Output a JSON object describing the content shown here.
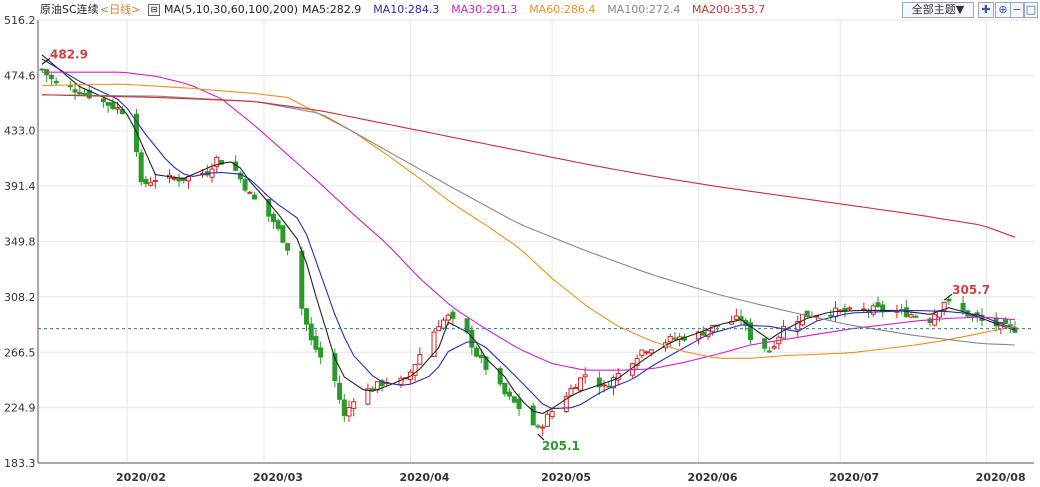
{
  "header": {
    "instrument": "原油SC连续",
    "period": "<日线>",
    "ma_icon": "collapse-box-icon",
    "ma_title": "MA(5,10,30,60,100,200)",
    "ma_values": [
      {
        "label": "MA5:282.9",
        "color": "#222222"
      },
      {
        "label": "MA10:284.3",
        "color": "#2b2bb8"
      },
      {
        "label": "MA30:291.3",
        "color": "#d020d0"
      },
      {
        "label": "MA60:286.4",
        "color": "#f0901c"
      },
      {
        "label": "MA100:272.4",
        "color": "#888888"
      },
      {
        "label": "MA200:353.7",
        "color": "#cc3333"
      }
    ],
    "theme_button": "全部主题▼",
    "controls": [
      {
        "name": "crosshair-icon",
        "glyph": "⊞"
      },
      {
        "name": "zoom-in-icon",
        "glyph": "⊞"
      },
      {
        "name": "minus-icon",
        "glyph": "–"
      },
      {
        "name": "square-icon",
        "glyph": "□"
      }
    ]
  },
  "colors": {
    "up": "#e02020",
    "down": "#2a9a2a",
    "grid": "#e6e6e6",
    "axis": "#555555",
    "last_price_line": "#2a7aa0"
  },
  "chart_data": {
    "type": "candlestick",
    "title": "原油SC连续 <日线>",
    "yticks": [
      516.2,
      474.6,
      433.0,
      391.4,
      349.8,
      308.2,
      266.5,
      224.9,
      183.3
    ],
    "ylim": [
      183.3,
      516.2
    ],
    "x_date_range": [
      "2020-01-14",
      "2020-08-07"
    ],
    "month_labels": [
      {
        "date": "2020-02-01",
        "label": "2020/02"
      },
      {
        "date": "2020-03-01",
        "label": "2020/03"
      },
      {
        "date": "2020-04-01",
        "label": "2020/04"
      },
      {
        "date": "2020-05-01",
        "label": "2020/05"
      },
      {
        "date": "2020-06-01",
        "label": "2020/06"
      },
      {
        "date": "2020-07-01",
        "label": "2020/07"
      },
      {
        "date": "2020-08-01",
        "label": "2020/08"
      }
    ],
    "last_price": 284.3,
    "annotations": [
      {
        "label": "482.9",
        "date": "2020-01-14",
        "value": 482.9,
        "color": "#d04040"
      },
      {
        "label": "305.7",
        "date": "2020-07-23",
        "value": 305.7,
        "color": "#d04040"
      },
      {
        "label": "205.1",
        "date": "2020-04-28",
        "value": 205.1,
        "color": "#2a9a2a"
      }
    ],
    "price_anchors": [
      [
        "2020-01-14",
        479
      ],
      [
        "2020-01-17",
        468
      ],
      [
        "2020-01-22",
        463
      ],
      [
        "2020-01-31",
        448
      ],
      [
        "2020-02-03",
        420
      ],
      [
        "2020-02-04",
        392
      ],
      [
        "2020-02-07",
        397
      ],
      [
        "2020-02-13",
        397
      ],
      [
        "2020-02-18",
        402
      ],
      [
        "2020-02-20",
        412
      ],
      [
        "2020-02-24",
        403
      ],
      [
        "2020-02-27",
        385
      ],
      [
        "2020-03-03",
        365
      ],
      [
        "2020-03-06",
        345
      ],
      [
        "2020-03-09",
        300
      ],
      [
        "2020-03-11",
        275
      ],
      [
        "2020-03-16",
        245
      ],
      [
        "2020-03-18",
        218
      ],
      [
        "2020-03-20",
        232
      ],
      [
        "2020-03-24",
        240
      ],
      [
        "2020-03-27",
        245
      ],
      [
        "2020-03-31",
        245
      ],
      [
        "2020-04-03",
        265
      ],
      [
        "2020-04-07",
        288
      ],
      [
        "2020-04-09",
        293
      ],
      [
        "2020-04-13",
        280
      ],
      [
        "2020-04-15",
        265
      ],
      [
        "2020-04-17",
        255
      ],
      [
        "2020-04-21",
        235
      ],
      [
        "2020-04-24",
        225
      ],
      [
        "2020-04-28",
        208
      ],
      [
        "2020-04-30",
        218
      ],
      [
        "2020-05-06",
        243
      ],
      [
        "2020-05-08",
        250
      ],
      [
        "2020-05-12",
        240
      ],
      [
        "2020-05-15",
        250
      ],
      [
        "2020-05-20",
        268
      ],
      [
        "2020-05-26",
        276
      ],
      [
        "2020-06-01",
        280
      ],
      [
        "2020-06-05",
        287
      ],
      [
        "2020-06-10",
        292
      ],
      [
        "2020-06-12",
        278
      ],
      [
        "2020-06-16",
        268
      ],
      [
        "2020-06-19",
        285
      ],
      [
        "2020-06-23",
        294
      ],
      [
        "2020-06-29",
        297
      ],
      [
        "2020-07-03",
        297
      ],
      [
        "2020-07-09",
        299
      ],
      [
        "2020-07-15",
        296
      ],
      [
        "2020-07-20",
        291
      ],
      [
        "2020-07-23",
        305
      ],
      [
        "2020-07-27",
        297
      ],
      [
        "2020-07-31",
        290
      ],
      [
        "2020-08-04",
        286
      ],
      [
        "2020-08-07",
        284
      ]
    ],
    "series": [
      {
        "name": "MA5",
        "color": "#222222",
        "anchors": [
          [
            "2020-01-14",
            490
          ],
          [
            "2020-01-22",
            466
          ],
          [
            "2020-01-31",
            452
          ],
          [
            "2020-02-03",
            432
          ],
          [
            "2020-02-07",
            400
          ],
          [
            "2020-02-13",
            397
          ],
          [
            "2020-02-20",
            408
          ],
          [
            "2020-02-24",
            410
          ],
          [
            "2020-02-27",
            395
          ],
          [
            "2020-03-03",
            375
          ],
          [
            "2020-03-09",
            347
          ],
          [
            "2020-03-11",
            320
          ],
          [
            "2020-03-16",
            262
          ],
          [
            "2020-03-18",
            248
          ],
          [
            "2020-03-23",
            236
          ],
          [
            "2020-03-27",
            241
          ],
          [
            "2020-04-02",
            250
          ],
          [
            "2020-04-07",
            270
          ],
          [
            "2020-04-09",
            289
          ],
          [
            "2020-04-14",
            280
          ],
          [
            "2020-04-17",
            262
          ],
          [
            "2020-04-21",
            248
          ],
          [
            "2020-04-24",
            232
          ],
          [
            "2020-04-28",
            219
          ],
          [
            "2020-04-30",
            222
          ],
          [
            "2020-05-06",
            236
          ],
          [
            "2020-05-11",
            242
          ],
          [
            "2020-05-15",
            247
          ],
          [
            "2020-05-20",
            260
          ],
          [
            "2020-05-26",
            274
          ],
          [
            "2020-06-01",
            281
          ],
          [
            "2020-06-05",
            287
          ],
          [
            "2020-06-10",
            291
          ],
          [
            "2020-06-16",
            276
          ],
          [
            "2020-06-19",
            283
          ],
          [
            "2020-06-24",
            292
          ],
          [
            "2020-06-29",
            297
          ],
          [
            "2020-07-06",
            298
          ],
          [
            "2020-07-13",
            298
          ],
          [
            "2020-07-20",
            295
          ],
          [
            "2020-07-24",
            300
          ],
          [
            "2020-07-28",
            296
          ],
          [
            "2020-08-03",
            288
          ],
          [
            "2020-08-07",
            283
          ]
        ]
      },
      {
        "name": "MA10",
        "color": "#2b2bb8",
        "anchors": [
          [
            "2020-01-14",
            487
          ],
          [
            "2020-01-22",
            470
          ],
          [
            "2020-01-31",
            455
          ],
          [
            "2020-02-05",
            430
          ],
          [
            "2020-02-10",
            408
          ],
          [
            "2020-02-14",
            398
          ],
          [
            "2020-02-20",
            402
          ],
          [
            "2020-02-26",
            400
          ],
          [
            "2020-03-03",
            380
          ],
          [
            "2020-03-09",
            365
          ],
          [
            "2020-03-12",
            335
          ],
          [
            "2020-03-17",
            285
          ],
          [
            "2020-03-20",
            264
          ],
          [
            "2020-03-25",
            245
          ],
          [
            "2020-03-31",
            241
          ],
          [
            "2020-04-06",
            250
          ],
          [
            "2020-04-09",
            267
          ],
          [
            "2020-04-14",
            276
          ],
          [
            "2020-04-17",
            270
          ],
          [
            "2020-04-22",
            253
          ],
          [
            "2020-04-27",
            235
          ],
          [
            "2020-04-30",
            224
          ],
          [
            "2020-05-06",
            225
          ],
          [
            "2020-05-12",
            238
          ],
          [
            "2020-05-18",
            246
          ],
          [
            "2020-05-22",
            256
          ],
          [
            "2020-05-28",
            268
          ],
          [
            "2020-06-03",
            280
          ],
          [
            "2020-06-10",
            287
          ],
          [
            "2020-06-16",
            286
          ],
          [
            "2020-06-22",
            282
          ],
          [
            "2020-06-26",
            290
          ],
          [
            "2020-07-03",
            296
          ],
          [
            "2020-07-10",
            297
          ],
          [
            "2020-07-17",
            298
          ],
          [
            "2020-07-24",
            297
          ],
          [
            "2020-07-30",
            295
          ],
          [
            "2020-08-07",
            284
          ]
        ]
      },
      {
        "name": "MA30",
        "color": "#d020d0",
        "anchors": [
          [
            "2020-01-14",
            477
          ],
          [
            "2020-01-31",
            477
          ],
          [
            "2020-02-07",
            474
          ],
          [
            "2020-02-14",
            468
          ],
          [
            "2020-02-21",
            457
          ],
          [
            "2020-02-28",
            437
          ],
          [
            "2020-03-06",
            415
          ],
          [
            "2020-03-13",
            393
          ],
          [
            "2020-03-20",
            370
          ],
          [
            "2020-03-27",
            348
          ],
          [
            "2020-04-03",
            322
          ],
          [
            "2020-04-10",
            300
          ],
          [
            "2020-04-17",
            284
          ],
          [
            "2020-04-24",
            269
          ],
          [
            "2020-05-01",
            258
          ],
          [
            "2020-05-08",
            253
          ],
          [
            "2020-05-15",
            253
          ],
          [
            "2020-05-22",
            254
          ],
          [
            "2020-05-29",
            259
          ],
          [
            "2020-06-05",
            265
          ],
          [
            "2020-06-12",
            272
          ],
          [
            "2020-06-19",
            276
          ],
          [
            "2020-06-26",
            280
          ],
          [
            "2020-07-03",
            284
          ],
          [
            "2020-07-10",
            287
          ],
          [
            "2020-07-17",
            290
          ],
          [
            "2020-07-24",
            292
          ],
          [
            "2020-07-31",
            293
          ],
          [
            "2020-08-07",
            291
          ]
        ]
      },
      {
        "name": "MA60",
        "color": "#f0901c",
        "anchors": [
          [
            "2020-01-14",
            467
          ],
          [
            "2020-01-31",
            468
          ],
          [
            "2020-02-14",
            465
          ],
          [
            "2020-02-28",
            461
          ],
          [
            "2020-03-06",
            458
          ],
          [
            "2020-03-13",
            445
          ],
          [
            "2020-03-20",
            432
          ],
          [
            "2020-03-27",
            415
          ],
          [
            "2020-04-03",
            397
          ],
          [
            "2020-04-10",
            378
          ],
          [
            "2020-04-17",
            362
          ],
          [
            "2020-04-24",
            345
          ],
          [
            "2020-05-01",
            322
          ],
          [
            "2020-05-08",
            302
          ],
          [
            "2020-05-15",
            286
          ],
          [
            "2020-05-22",
            275
          ],
          [
            "2020-05-29",
            267
          ],
          [
            "2020-06-05",
            262
          ],
          [
            "2020-06-12",
            262
          ],
          [
            "2020-06-19",
            264
          ],
          [
            "2020-06-26",
            265
          ],
          [
            "2020-07-03",
            266
          ],
          [
            "2020-07-10",
            269
          ],
          [
            "2020-07-17",
            272
          ],
          [
            "2020-07-24",
            276
          ],
          [
            "2020-07-31",
            281
          ],
          [
            "2020-08-07",
            286
          ]
        ]
      },
      {
        "name": "MA100",
        "color": "#888888",
        "anchors": [
          [
            "2020-01-14",
            460
          ],
          [
            "2020-02-07",
            459
          ],
          [
            "2020-02-28",
            455
          ],
          [
            "2020-03-13",
            446
          ],
          [
            "2020-03-27",
            418
          ],
          [
            "2020-04-10",
            390
          ],
          [
            "2020-04-24",
            363
          ],
          [
            "2020-05-08",
            343
          ],
          [
            "2020-05-22",
            325
          ],
          [
            "2020-06-05",
            310
          ],
          [
            "2020-06-19",
            298
          ],
          [
            "2020-07-03",
            287
          ],
          [
            "2020-07-17",
            279
          ],
          [
            "2020-07-31",
            273
          ],
          [
            "2020-08-07",
            272
          ]
        ]
      },
      {
        "name": "MA200",
        "color": "#cc3333",
        "anchors": [
          [
            "2020-01-14",
            460
          ],
          [
            "2020-02-07",
            458
          ],
          [
            "2020-02-28",
            455
          ],
          [
            "2020-03-13",
            448
          ],
          [
            "2020-03-27",
            438
          ],
          [
            "2020-04-10",
            428
          ],
          [
            "2020-04-24",
            418
          ],
          [
            "2020-05-08",
            408
          ],
          [
            "2020-05-22",
            399
          ],
          [
            "2020-06-05",
            391
          ],
          [
            "2020-06-19",
            384
          ],
          [
            "2020-07-03",
            377
          ],
          [
            "2020-07-17",
            370
          ],
          [
            "2020-07-31",
            362
          ],
          [
            "2020-08-07",
            353
          ]
        ]
      }
    ]
  }
}
